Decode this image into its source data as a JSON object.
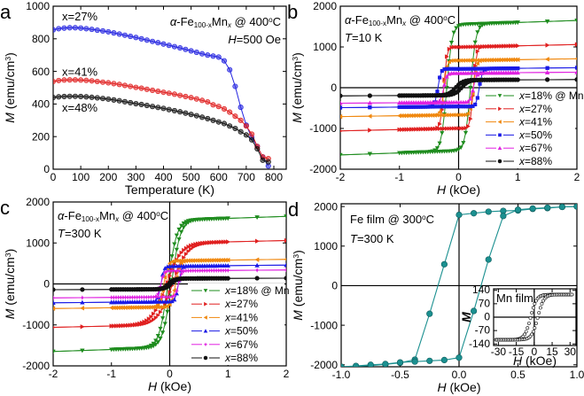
{
  "chart_data": [
    {
      "id": "a",
      "type": "line",
      "panel_letter": "a",
      "title_parts": [
        {
          "t": "α",
          "s": "it"
        },
        {
          "t": "-Fe"
        },
        {
          "t": "100-x",
          "s": "sub"
        },
        {
          "t": "Mn"
        },
        {
          "t": "x",
          "s": "subit"
        },
        {
          "t": " @ 400"
        },
        {
          "t": "o",
          "s": "sup"
        },
        {
          "t": "C"
        }
      ],
      "subtitle_parts": [
        {
          "t": "H",
          "s": "it"
        },
        {
          "t": "=500 Oe"
        }
      ],
      "xlabel": "Temperature (K)",
      "ylabel_parts": [
        {
          "t": "M",
          "s": "it"
        },
        {
          "t": " (emu/cm"
        },
        {
          "t": "3",
          "s": "sup"
        },
        {
          "t": ")"
        }
      ],
      "xlim": [
        0,
        845
      ],
      "ylim": [
        0,
        1000
      ],
      "xticks": [
        "0",
        "100",
        "200",
        "300",
        "400",
        "500",
        "600",
        "700",
        "800"
      ],
      "yticks": [
        "0",
        "200",
        "400",
        "600",
        "800",
        "1000"
      ],
      "x": [
        0,
        20,
        40,
        60,
        80,
        100,
        120,
        140,
        160,
        180,
        200,
        220,
        240,
        260,
        280,
        300,
        320,
        340,
        360,
        380,
        400,
        420,
        440,
        460,
        480,
        500,
        520,
        540,
        560,
        580,
        600,
        620,
        640,
        660,
        680,
        700,
        720,
        740,
        760,
        780
      ],
      "series": [
        {
          "name": "x=27%",
          "color": "#2323e0",
          "values": [
            855,
            862,
            866,
            868,
            868,
            866,
            862,
            858,
            853,
            848,
            843,
            836,
            829,
            822,
            815,
            808,
            800,
            792,
            784,
            776,
            768,
            760,
            752,
            744,
            735,
            726,
            717,
            708,
            700,
            694,
            688,
            665,
            610,
            508,
            380,
            270,
            195,
            140,
            75,
            20
          ]
        },
        {
          "name": "x=41%",
          "color": "#e02020",
          "values": [
            538,
            544,
            547,
            548,
            548,
            547,
            545,
            542,
            538,
            534,
            530,
            525,
            520,
            514,
            508,
            502,
            497,
            490,
            484,
            478,
            472,
            466,
            460,
            453,
            446,
            439,
            431,
            422,
            413,
            395,
            385,
            370,
            350,
            325,
            300,
            265,
            215,
            140,
            75,
            65
          ]
        },
        {
          "name": "x=48%",
          "color": "#111111",
          "values": [
            440,
            444,
            446,
            447,
            447,
            446,
            444,
            441,
            438,
            434,
            430,
            425,
            420,
            414,
            408,
            402,
            397,
            391,
            385,
            379,
            373,
            366,
            359,
            352,
            344,
            336,
            328,
            319,
            310,
            300,
            290,
            280,
            265,
            250,
            230,
            210,
            180,
            125,
            55,
            45
          ]
        }
      ]
    },
    {
      "id": "b",
      "type": "line",
      "panel_letter": "b",
      "title_parts": [
        {
          "t": "α",
          "s": "it"
        },
        {
          "t": "-Fe"
        },
        {
          "t": "100-x",
          "s": "sub"
        },
        {
          "t": "Mn"
        },
        {
          "t": "x",
          "s": "subit"
        },
        {
          "t": " @ 400"
        },
        {
          "t": "o",
          "s": "sup"
        },
        {
          "t": "C"
        }
      ],
      "subtitle_parts": [
        {
          "t": "T",
          "s": "it"
        },
        {
          "t": "=10 K"
        }
      ],
      "xlabel_parts": [
        {
          "t": "H",
          "s": "it"
        },
        {
          "t": " (kOe)"
        }
      ],
      "ylabel_parts": [
        {
          "t": "M",
          "s": "it"
        },
        {
          "t": " (emu/cm"
        },
        {
          "t": "3",
          "s": "sup"
        },
        {
          "t": ")"
        }
      ],
      "xlim": [
        -2,
        2
      ],
      "ylim": [
        -2000,
        2000
      ],
      "xticks": [
        "-2",
        "-1",
        "0",
        "1",
        "2"
      ],
      "yticks": [
        "-2000",
        "-1000",
        "0",
        "1000",
        "2000"
      ],
      "series_model": "hysteresis loop: saturation Ms (emu/cm3), coercivity Hc (kOe)",
      "series": [
        {
          "name": "x=18% @ Mn",
          "legend": [
            "x",
            "=18% @ Mn"
          ],
          "color": "#1e8c1e",
          "marker": "tri-down",
          "Ms": 1650,
          "Hc": 0.2,
          "w": 0.09
        },
        {
          "name": "x=27%",
          "legend": [
            "x",
            "=27%"
          ],
          "color": "#e02020",
          "marker": "tri-right",
          "Ms": 1060,
          "Hc": 0.25,
          "w": 0.05
        },
        {
          "name": "x=41%",
          "legend": [
            "x",
            "=41%"
          ],
          "color": "#f0880f",
          "marker": "tri-left",
          "Ms": 710,
          "Hc": 0.25,
          "w": 0.05
        },
        {
          "name": "x=50%",
          "legend": [
            "x",
            "=50%"
          ],
          "color": "#1a1ae6",
          "marker": "square",
          "Ms": 490,
          "Hc": 0.35,
          "w": 0.05
        },
        {
          "name": "x=67%",
          "legend": [
            "x",
            "=67%"
          ],
          "color": "#e020e0",
          "marker": "tri-up",
          "Ms": 380,
          "Hc": 0.25,
          "w": 0.05
        },
        {
          "name": "x=88%",
          "legend": [
            "x",
            "=88%"
          ],
          "color": "#111111",
          "marker": "circle",
          "Ms": 200,
          "Hc": 0.05,
          "w": 0.12
        }
      ]
    },
    {
      "id": "c",
      "type": "line",
      "panel_letter": "c",
      "title_parts": [
        {
          "t": "α",
          "s": "it"
        },
        {
          "t": "-Fe"
        },
        {
          "t": "100-x",
          "s": "sub"
        },
        {
          "t": "Mn"
        },
        {
          "t": "x",
          "s": "subit"
        },
        {
          "t": " @ 400"
        },
        {
          "t": "o",
          "s": "sup"
        },
        {
          "t": "C"
        }
      ],
      "subtitle_parts": [
        {
          "t": "T",
          "s": "it"
        },
        {
          "t": "=300 K"
        }
      ],
      "xlabel_parts": [
        {
          "t": "H",
          "s": "it"
        },
        {
          "t": " (kOe)"
        }
      ],
      "ylabel_parts": [
        {
          "t": "M",
          "s": "it"
        },
        {
          "t": " (emu/cm"
        },
        {
          "t": "3",
          "s": "sup"
        },
        {
          "t": ")"
        }
      ],
      "xlim": [
        -2,
        2
      ],
      "ylim": [
        -2000,
        2000
      ],
      "xticks": [
        "-2",
        "-1",
        "0",
        "1",
        "2"
      ],
      "yticks": [
        "-2000",
        "-1000",
        "0",
        "1000",
        "2000"
      ],
      "series": [
        {
          "name": "x=18% @ Mn",
          "legend": [
            "x",
            "=18% @ Mn"
          ],
          "color": "#1e8c1e",
          "marker": "tri-down",
          "Ms": 1650,
          "Hc": 0.03,
          "w": 0.15
        },
        {
          "name": "x=27%",
          "legend": [
            "x",
            "=27%"
          ],
          "color": "#e02020",
          "marker": "tri-right",
          "Ms": 1060,
          "Hc": 0.05,
          "w": 0.25
        },
        {
          "name": "x=41%",
          "legend": [
            "x",
            "=41%"
          ],
          "color": "#f0880f",
          "marker": "tri-left",
          "Ms": 600,
          "Hc": 0.1,
          "w": 0.07
        },
        {
          "name": "x=50%",
          "legend": [
            "x",
            "=50%"
          ],
          "color": "#1a1ae6",
          "marker": "tri-up",
          "Ms": 460,
          "Hc": 0.15,
          "w": 0.05
        },
        {
          "name": "x=67%",
          "legend": [
            "x",
            "=67%"
          ],
          "color": "#e020e0",
          "marker": "star",
          "Ms": 340,
          "Hc": 0.15,
          "w": 0.05
        },
        {
          "name": "x=88%",
          "legend": [
            "x",
            "=88%"
          ],
          "color": "#111111",
          "marker": "circle",
          "Ms": 140,
          "Hc": 0.02,
          "w": 0.1
        }
      ]
    },
    {
      "id": "d",
      "type": "line",
      "panel_letter": "d",
      "title_parts": [
        {
          "t": "Fe film @ 300"
        },
        {
          "t": "o",
          "s": "sup"
        },
        {
          "t": "C"
        }
      ],
      "subtitle_parts": [
        {
          "t": "T",
          "s": "it"
        },
        {
          "t": "=300 K"
        }
      ],
      "xlabel_parts": [
        {
          "t": "H",
          "s": "it"
        },
        {
          "t": " (kOe)"
        }
      ],
      "ylabel_parts": [
        {
          "t": "M",
          "s": "it"
        },
        {
          "t": " (emu/cm"
        },
        {
          "t": "3",
          "s": "sup"
        },
        {
          "t": ")"
        }
      ],
      "xlim": [
        -1,
        1
      ],
      "ylim": [
        -2050,
        2070
      ],
      "xticks": [
        "-1.0",
        "-0.5",
        "0.0",
        "0.5",
        "1.0"
      ],
      "yticks": [
        "-2000",
        "-1000",
        "0",
        "1000",
        "2000"
      ],
      "color": "#1b9090",
      "branches": [
        {
          "name": "descending",
          "H": [
            1,
            0.875,
            0.75,
            0.625,
            0.5,
            0.375,
            0.25,
            0.125,
            0,
            -0.125,
            -0.25,
            -0.375,
            -0.5,
            -0.625,
            -0.75,
            -0.875,
            -1
          ],
          "M": [
            2000,
            1990,
            1960,
            1940,
            1900,
            1890,
            1870,
            1830,
            1790,
            540,
            -710,
            -1870,
            -1950,
            -1990,
            -2020,
            -2040,
            -2050
          ]
        },
        {
          "name": "ascending",
          "H": [
            -1,
            -0.875,
            -0.75,
            -0.625,
            -0.5,
            -0.375,
            -0.25,
            -0.125,
            0,
            0.125,
            0.25,
            0.375,
            0.5,
            0.625,
            0.75,
            0.875,
            1
          ],
          "M": [
            -2050,
            -2030,
            -2000,
            -1980,
            -1940,
            -1920,
            -1900,
            -1880,
            -1820,
            -640,
            660,
            1760,
            1920,
            1950,
            1970,
            1990,
            2000
          ]
        }
      ],
      "inset": {
        "title": "Mn film",
        "ylabel": "M",
        "xlabel_parts": [
          {
            "t": "H",
            "s": "it"
          },
          {
            "t": " (kOe)"
          }
        ],
        "xlim": [
          -34,
          35
        ],
        "ylim": [
          -148,
          148
        ],
        "xticks": [
          "-30",
          "-15",
          "0",
          "15",
          "30"
        ],
        "yticks": [
          "-140",
          "-70",
          "0",
          "70",
          "140"
        ],
        "Ms": 118,
        "Hc": 3,
        "w": 5
      }
    }
  ]
}
